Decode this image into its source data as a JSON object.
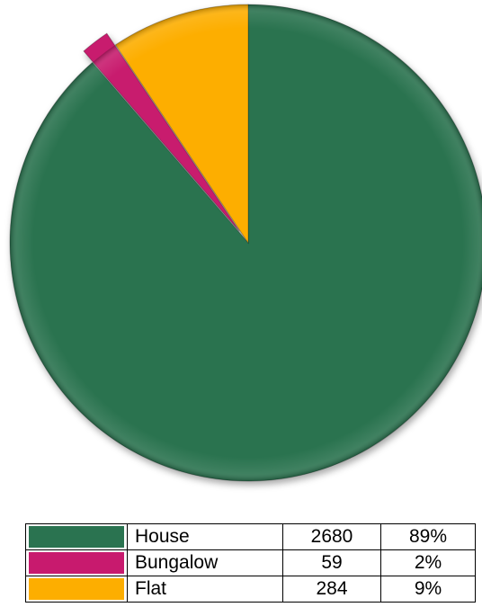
{
  "chart_data": {
    "type": "pie",
    "title": "",
    "categories": [
      "House",
      "Bungalow",
      "Flat"
    ],
    "values": [
      2680,
      59,
      284
    ],
    "percentages": [
      "89%",
      "2%",
      "9%"
    ],
    "colors": [
      "#2a7350",
      "#c81a6e",
      "#fdae00"
    ],
    "exploded": [
      "Bungalow"
    ],
    "legend": "bottom-table",
    "table": {
      "rows": [
        {
          "label": "House",
          "count": "2680",
          "percent": "89%",
          "color": "#2a7350"
        },
        {
          "label": "Bungalow",
          "count": "59",
          "percent": "2%",
          "color": "#c81a6e"
        },
        {
          "label": "Flat",
          "count": "284",
          "percent": "9%",
          "color": "#fdae00"
        }
      ]
    }
  }
}
